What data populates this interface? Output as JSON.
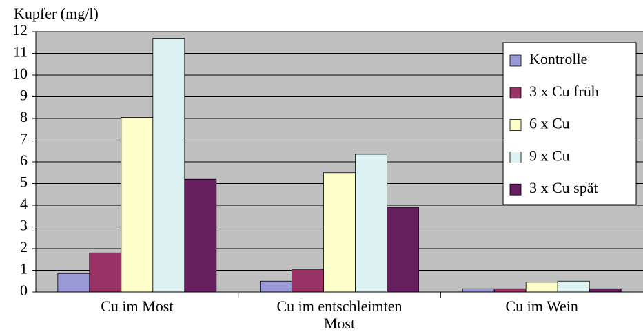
{
  "chart_data": {
    "type": "bar",
    "y_label": "Kupfer (mg/l)",
    "categories": [
      "Cu im Most",
      "Cu im entschleimten Most",
      "Cu im Wein"
    ],
    "series": [
      {
        "name": "Kontrolle",
        "color": "#9999d6",
        "values": [
          0.85,
          0.5,
          0.15
        ]
      },
      {
        "name": "3 x Cu früh",
        "color": "#993366",
        "values": [
          1.8,
          1.05,
          0.15
        ]
      },
      {
        "name": "6 x Cu",
        "color": "#ffffcc",
        "values": [
          8.05,
          5.5,
          0.45
        ]
      },
      {
        "name": "9 x Cu",
        "color": "#ddf3f3",
        "values": [
          11.7,
          6.35,
          0.5
        ]
      },
      {
        "name": "3 x Cu spät",
        "color": "#661f5f",
        "values": [
          5.2,
          3.9,
          0.15
        ]
      }
    ],
    "ylim": [
      0,
      12
    ],
    "yticks": [
      0,
      1,
      2,
      3,
      4,
      5,
      6,
      7,
      8,
      9,
      10,
      11,
      12
    ],
    "grid": true,
    "legend": "upper right",
    "plot_background": "#c0c0c0"
  }
}
